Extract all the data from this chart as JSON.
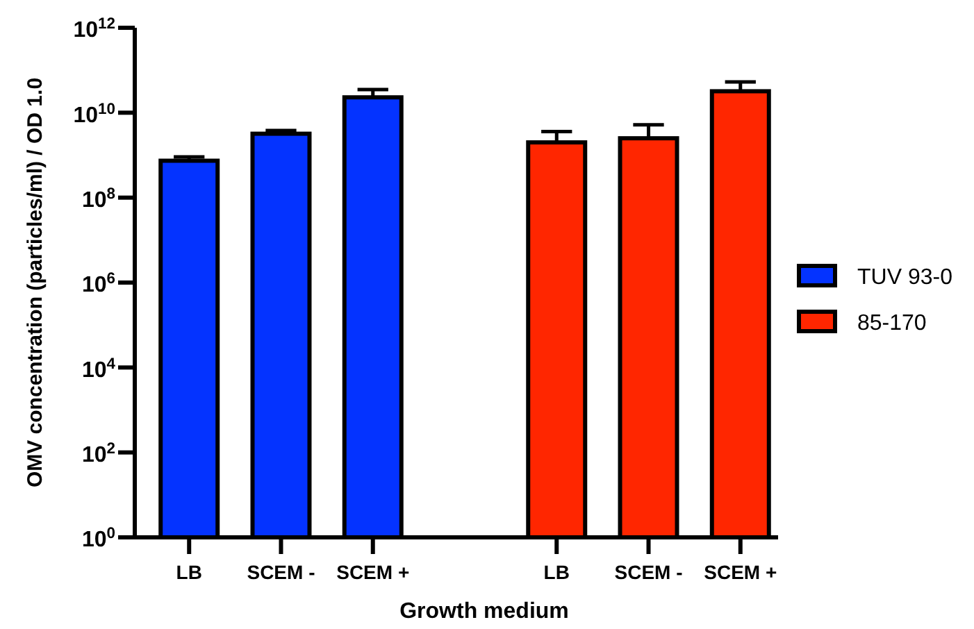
{
  "chart_data": {
    "type": "bar",
    "xlabel": "Growth medium",
    "ylabel": "OMV concentration (particles/ml) / OD 1.0",
    "categories": [
      "LB",
      "SCEM -",
      "SCEM +",
      null,
      "LB",
      "SCEM -",
      "SCEM +"
    ],
    "series": [
      {
        "name": "TUV 93-0",
        "color": "#0433ff",
        "values": [
          740000000.0,
          3200000000.0,
          23000000000.0,
          null,
          null,
          null,
          null
        ],
        "errors": [
          [
            740000000.0,
            910000000.0
          ],
          [
            3200000000.0,
            3800000000.0
          ],
          [
            23000000000.0,
            35000000000.0
          ],
          null,
          null,
          null,
          null
        ]
      },
      {
        "name": "85-170",
        "color": "#ff2600",
        "values": [
          null,
          null,
          null,
          null,
          2000000000.0,
          2500000000.0,
          32000000000.0
        ],
        "errors": [
          null,
          null,
          null,
          null,
          [
            2000000000.0,
            3600000000.0
          ],
          [
            2500000000.0,
            5200000000.0
          ],
          [
            32000000000.0,
            53000000000.0
          ]
        ]
      }
    ],
    "log": true,
    "ylim": [
      1,
      1000000000000.0
    ],
    "yticks": [
      {
        "value": 1,
        "label": "10$^{0}$"
      },
      {
        "value": 100,
        "label": "10$^{2}$"
      },
      {
        "value": 10000,
        "label": "10$^{4}$"
      },
      {
        "value": 1000000.0,
        "label": "10$^{6}$"
      },
      {
        "value": 100000000.0,
        "label": "10$^{8}$"
      },
      {
        "value": 10000000000.0,
        "label": "10$^{10}$"
      },
      {
        "value": 1000000000000.0,
        "label": "10$^{12}$"
      }
    ],
    "grid": false,
    "legend": "right"
  }
}
